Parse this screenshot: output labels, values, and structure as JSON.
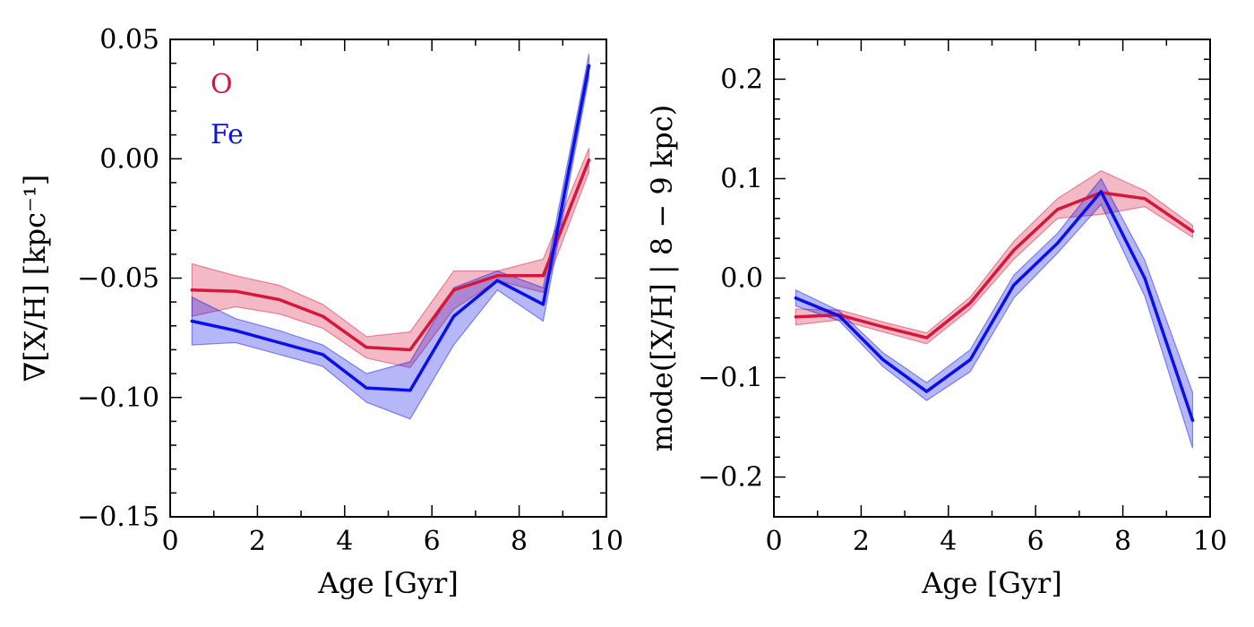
{
  "chart_data": [
    {
      "type": "line",
      "xlabel": "Age [Gyr]",
      "ylabel": "∇[X/H] [kpc⁻¹]",
      "xlim": [
        0,
        10
      ],
      "ylim": [
        -0.15,
        0.05
      ],
      "xticks": [
        0,
        2,
        4,
        6,
        8,
        10
      ],
      "xtick_labels": [
        "0",
        "2",
        "4",
        "6",
        "8",
        "10"
      ],
      "yticks": [
        -0.15,
        -0.1,
        -0.05,
        0.0,
        0.05
      ],
      "ytick_labels": [
        "−0.15",
        "−0.10",
        "−0.05",
        "0.00",
        "0.05"
      ],
      "legend": "top-left",
      "x": [
        0.5,
        1.5,
        2.5,
        3.5,
        4.5,
        5.5,
        6.5,
        7.5,
        8.55,
        9.6
      ],
      "series": [
        {
          "name": "O",
          "color": "#d6163a",
          "values": [
            -0.055,
            -0.0555,
            -0.059,
            -0.066,
            -0.079,
            -0.08,
            -0.055,
            -0.049,
            -0.049,
            -0.0005
          ],
          "upper": [
            -0.044,
            -0.049,
            -0.053,
            -0.061,
            -0.0745,
            -0.0725,
            -0.047,
            -0.047,
            -0.042,
            0.0045
          ],
          "lower": [
            -0.066,
            -0.062,
            -0.065,
            -0.071,
            -0.0835,
            -0.0875,
            -0.063,
            -0.051,
            -0.056,
            -0.0055
          ]
        },
        {
          "name": "Fe",
          "color": "#0a10e8",
          "values": [
            -0.068,
            -0.072,
            -0.077,
            -0.082,
            -0.096,
            -0.097,
            -0.066,
            -0.051,
            -0.061,
            0.039
          ],
          "upper": [
            -0.058,
            -0.067,
            -0.072,
            -0.078,
            -0.09,
            -0.085,
            -0.054,
            -0.047,
            -0.054,
            0.044
          ],
          "lower": [
            -0.078,
            -0.077,
            -0.082,
            -0.087,
            -0.102,
            -0.109,
            -0.078,
            -0.055,
            -0.068,
            0.034
          ]
        }
      ]
    },
    {
      "type": "line",
      "xlabel": "Age [Gyr]",
      "ylabel": "mode([X/H] | 8 − 9 kpc)",
      "xlim": [
        0,
        10
      ],
      "ylim": [
        -0.24,
        0.24
      ],
      "xticks": [
        0,
        2,
        4,
        6,
        8,
        10
      ],
      "xtick_labels": [
        "0",
        "2",
        "4",
        "6",
        "8",
        "10"
      ],
      "yticks": [
        -0.2,
        -0.1,
        0.0,
        0.1,
        0.2
      ],
      "ytick_labels": [
        "−0.2",
        "−0.1",
        "0.0",
        "0.1",
        "0.2"
      ],
      "x": [
        0.5,
        1.5,
        2.5,
        3.5,
        4.5,
        5.5,
        6.5,
        7.5,
        8.5,
        9.6
      ],
      "series": [
        {
          "name": "O",
          "color": "#d6163a",
          "values": [
            -0.039,
            -0.037,
            -0.049,
            -0.06,
            -0.025,
            0.028,
            0.069,
            0.086,
            0.08,
            0.047
          ],
          "upper": [
            -0.031,
            -0.032,
            -0.044,
            -0.055,
            -0.019,
            0.037,
            0.08,
            0.108,
            0.088,
            0.053
          ],
          "lower": [
            -0.047,
            -0.042,
            -0.054,
            -0.066,
            -0.031,
            0.019,
            0.06,
            0.064,
            0.072,
            0.041
          ]
        },
        {
          "name": "Fe",
          "color": "#0a10e8",
          "values": [
            -0.02,
            -0.038,
            -0.082,
            -0.114,
            -0.082,
            -0.007,
            0.035,
            0.087,
            0.0,
            -0.143
          ],
          "upper": [
            -0.012,
            -0.033,
            -0.075,
            -0.105,
            -0.072,
            0.003,
            0.045,
            0.1,
            0.018,
            -0.115
          ],
          "lower": [
            -0.028,
            -0.043,
            -0.089,
            -0.123,
            -0.094,
            -0.02,
            0.025,
            0.074,
            -0.018,
            -0.171
          ]
        }
      ]
    }
  ]
}
